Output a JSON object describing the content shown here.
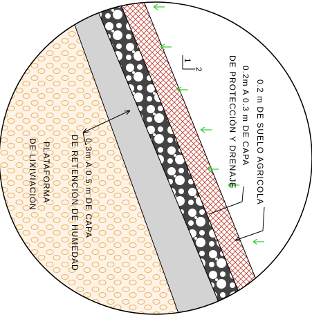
{
  "labels": {
    "soil": "0.2 m DE SUELO AGRICOLA",
    "protection_1": "0.2m A 0.3 m DE CAPA",
    "protection_2": "DE PROTECCIÓN Y DRENAJE",
    "slope_v": "1",
    "slope_h": "2",
    "retention_1": "0.3m A 0.5 m DE CAPA",
    "retention_2": "DE RETENCIÓN DE HUMEDAD",
    "platform_1": "PLATAFORMA",
    "platform_2": "DE LIXIVIACIÓN"
  }
}
